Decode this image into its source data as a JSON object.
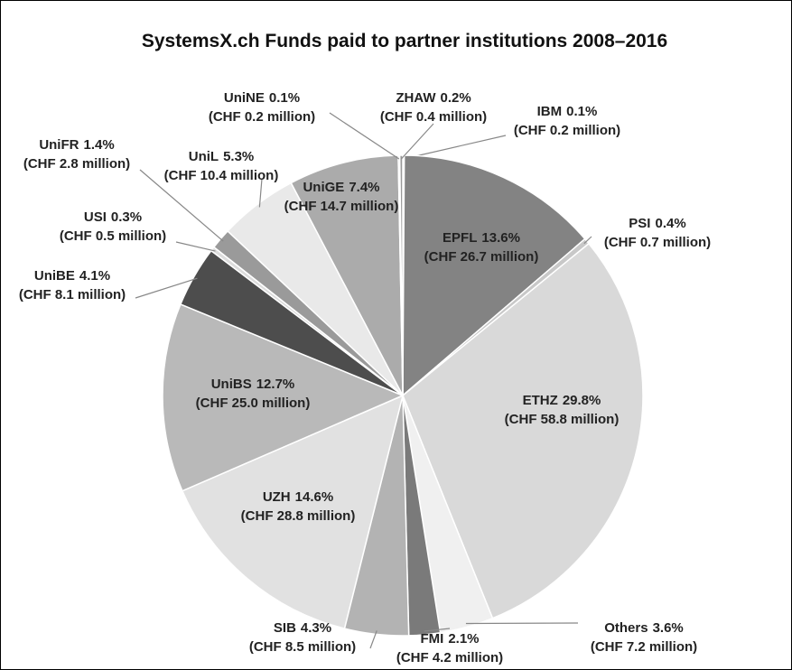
{
  "chart_data": {
    "type": "pie",
    "title": "SystemsX.ch Funds paid to partner institutions 2008–2016",
    "categories": [
      "IBM",
      "EPFL",
      "PSI",
      "ETHZ",
      "Others",
      "FMI",
      "SIB",
      "UZH",
      "UniBS",
      "UniBE",
      "USI",
      "UniFR",
      "UniL",
      "UniGE",
      "UniNE",
      "ZHAW"
    ],
    "values": [
      0.1,
      13.6,
      0.4,
      29.8,
      3.6,
      2.1,
      4.3,
      14.6,
      12.7,
      4.1,
      0.3,
      1.4,
      5.3,
      7.4,
      0.1,
      0.2
    ],
    "value_labels": [
      "0.1%",
      "13.6%",
      "0.4%",
      "29.8%",
      "3.6%",
      "2.1%",
      "4.3%",
      "14.6%",
      "12.7%",
      "4.1%",
      "0.3%",
      "1.4%",
      "5.3%",
      "7.4%",
      "0.1%",
      "0.2%"
    ],
    "amounts": [
      0.2,
      26.7,
      0.7,
      58.8,
      7.2,
      4.2,
      8.5,
      28.8,
      25.0,
      8.1,
      0.5,
      2.8,
      10.4,
      14.7,
      0.2,
      0.4
    ],
    "amount_labels": [
      "(CHF 0.2 million)",
      "(CHF 26.7 million)",
      "(CHF 0.7 million)",
      "(CHF 58.8 million)",
      "(CHF 7.2 million)",
      "(CHF 4.2 million)",
      "(CHF 8.5 million)",
      "(CHF 28.8 million)",
      "(CHF 25.0 million)",
      "(CHF 8.1 million)",
      "(CHF 0.5 million)",
      "(CHF 2.8 million)",
      "(CHF 10.4 million)",
      "(CHF 14.7 million)",
      "(CHF 0.2 million)",
      "(CHF 0.4 million)"
    ],
    "colors": [
      "#bdbdbd",
      "#838383",
      "#c8c8c8",
      "#d9d9d9",
      "#f0f0f0",
      "#7a7a7a",
      "#b3b3b3",
      "#e1e1e1",
      "#b9b9b9",
      "#4d4d4d",
      "#dcdcdc",
      "#9a9a9a",
      "#e9e9e9",
      "#ababab",
      "#cfcfcf",
      "#999999"
    ]
  }
}
